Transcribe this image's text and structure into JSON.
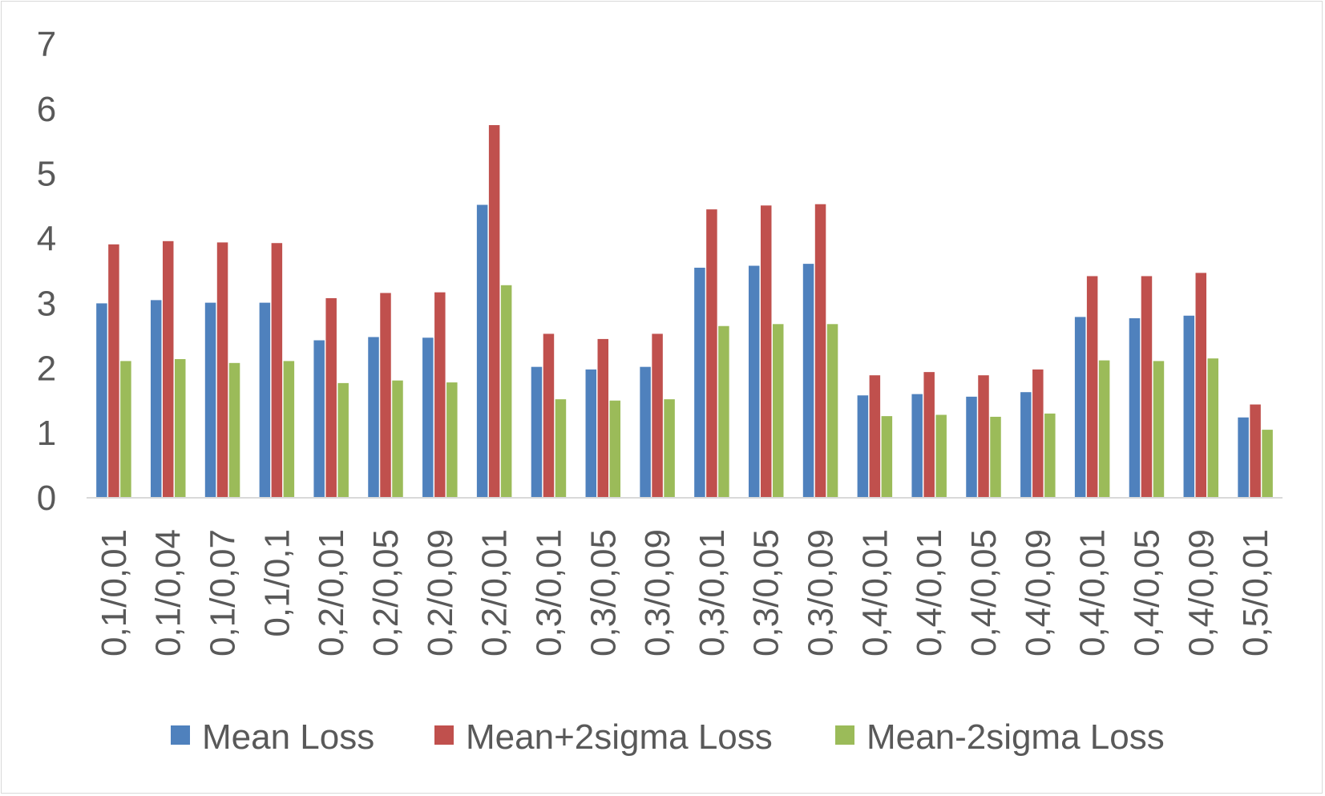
{
  "chart_data": {
    "type": "bar",
    "title": "",
    "xlabel": "",
    "ylabel": "",
    "ylim": [
      0,
      7
    ],
    "yticks": [
      0,
      1,
      2,
      3,
      4,
      5,
      6,
      7
    ],
    "grid": false,
    "legend_position": "bottom",
    "categories": [
      "0,1/0,01",
      "0,1/0,04",
      "0,1/0,07",
      "0,1/0,1",
      "0,2/0,01",
      "0,2/0,05",
      "0,2/0,09",
      "0,2/0,01",
      "0,3/0,01",
      "0,3/0,05",
      "0,3/0,09",
      "0,3/0,01",
      "0,3/0,05",
      "0,3/0,09",
      "0,4/0,01",
      "0,4/0,01",
      "0,4/0,05",
      "0,4/0,09",
      "0,4/0,01",
      "0,4/0,05",
      "0,4/0,09",
      "0,5/0,01"
    ],
    "series": [
      {
        "name": "Mean Loss",
        "color": "#4f81bd",
        "values": [
          3.0,
          3.05,
          3.01,
          3.01,
          2.43,
          2.48,
          2.47,
          4.52,
          2.02,
          1.98,
          2.02,
          3.55,
          3.58,
          3.61,
          1.58,
          1.6,
          1.56,
          1.63,
          2.79,
          2.77,
          2.81,
          1.24
        ]
      },
      {
        "name": "Mean+2sigma Loss",
        "color": "#c0504d",
        "values": [
          3.91,
          3.96,
          3.94,
          3.93,
          3.08,
          3.16,
          3.17,
          5.75,
          2.53,
          2.45,
          2.53,
          4.45,
          4.51,
          4.53,
          1.89,
          1.94,
          1.89,
          1.98,
          3.42,
          3.42,
          3.47,
          1.44
        ]
      },
      {
        "name": "Mean-2sigma Loss",
        "color": "#9bbb59",
        "values": [
          2.11,
          2.14,
          2.08,
          2.11,
          1.77,
          1.81,
          1.78,
          3.28,
          1.52,
          1.5,
          1.52,
          2.65,
          2.68,
          2.68,
          1.26,
          1.28,
          1.25,
          1.3,
          2.12,
          2.11,
          2.15,
          1.05
        ]
      }
    ]
  }
}
